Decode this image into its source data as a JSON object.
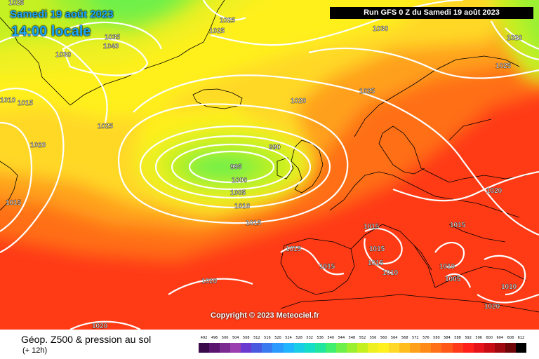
{
  "header": {
    "date": "Samedi 19 août 2023",
    "time": "14:00 locale",
    "run": "Run GFS 0 Z du Samedi 19 août 2023"
  },
  "copyright": "Copyright © 2023 Meteociel.fr",
  "footer": {
    "title": "Géop. Z500 & pression au sol",
    "subtitle": "(+ 12h)"
  },
  "legend": {
    "values": [
      "492",
      "496",
      "500",
      "504",
      "508",
      "512",
      "516",
      "520",
      "524",
      "528",
      "532",
      "536",
      "540",
      "544",
      "548",
      "552",
      "556",
      "560",
      "564",
      "568",
      "572",
      "576",
      "580",
      "584",
      "588",
      "592",
      "596",
      "600",
      "604",
      "608",
      "612"
    ],
    "colors": [
      "#3a0a4a",
      "#5a1570",
      "#7a2a90",
      "#9a3eb0",
      "#6a3ad0",
      "#4a5ae0",
      "#3a7af0",
      "#2a9aff",
      "#22b5ff",
      "#1acde6",
      "#16ddc8",
      "#20e6a0",
      "#40ee70",
      "#6ef04a",
      "#9af030",
      "#c5f020",
      "#eef020",
      "#fff01e",
      "#ffd828",
      "#ffbe1e",
      "#ffa01a",
      "#ff8a18",
      "#ff7018",
      "#ff5818",
      "#ff3a18",
      "#ff2018",
      "#e61418",
      "#c80c14",
      "#a00810",
      "#700508",
      "#000000"
    ]
  },
  "pressure_labels": [
    "1025",
    "1025",
    "1025",
    "1035",
    "1040",
    "1030",
    "1030",
    "1020",
    "1025",
    "1010",
    "1015",
    "1025",
    "1020",
    "1020",
    "1025",
    "1020",
    "990",
    "995",
    "1000",
    "1005",
    "1010",
    "1015",
    "1015",
    "1015",
    "1015",
    "1015",
    "1015",
    "1015",
    "1015",
    "1010",
    "1010",
    "1005",
    "1010",
    "1020",
    "1020"
  ],
  "colors": {
    "title": "#1aa9ff",
    "isobar": "#ffffff",
    "coast": "#000000"
  }
}
